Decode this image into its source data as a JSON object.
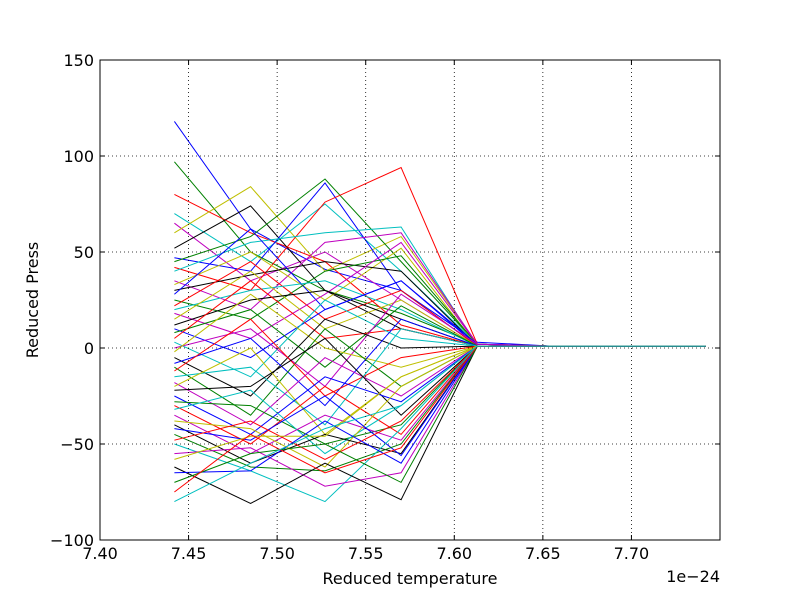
{
  "chart_data": {
    "type": "line",
    "title": "",
    "xlabel": "Reduced temperature",
    "ylabel": "Reduced Press",
    "x_offset_text": "1e−24",
    "xlim": [
      7.4,
      7.75
    ],
    "ylim": [
      -100,
      150
    ],
    "x_ticks": [
      7.4,
      7.45,
      7.5,
      7.55,
      7.6,
      7.65,
      7.7
    ],
    "x_tick_labels": [
      "7.40",
      "7.45",
      "7.50",
      "7.55",
      "7.60",
      "7.65",
      "7.70"
    ],
    "y_ticks": [
      -100,
      -50,
      0,
      50,
      100,
      150
    ],
    "y_tick_labels": [
      "−100",
      "−50",
      "0",
      "50",
      "100",
      "150"
    ],
    "grid": true,
    "grid_style": "dotted",
    "x": [
      7.442,
      7.485,
      7.527,
      7.57,
      7.613,
      7.655,
      7.742
    ],
    "colors": [
      "#0000ff",
      "#008000",
      "#ff0000",
      "#00bfbf",
      "#bf00bf",
      "#bfbf00",
      "#000000"
    ],
    "series": [
      {
        "values": [
          118,
          62,
          41,
          30,
          3,
          1,
          1
        ]
      },
      {
        "values": [
          97,
          50,
          30,
          18,
          2,
          1,
          1
        ]
      },
      {
        "values": [
          80,
          60,
          45,
          12,
          1,
          1,
          1
        ]
      },
      {
        "values": [
          70,
          45,
          75,
          40,
          2,
          1,
          1
        ]
      },
      {
        "values": [
          65,
          35,
          50,
          25,
          1,
          1,
          1
        ]
      },
      {
        "values": [
          60,
          84,
          40,
          58,
          2,
          1,
          1
        ]
      },
      {
        "values": [
          52,
          74,
          30,
          10,
          1,
          1,
          1
        ]
      },
      {
        "values": [
          47,
          40,
          86,
          30,
          1,
          1,
          1
        ]
      },
      {
        "values": [
          45,
          58,
          88,
          45,
          2,
          1,
          1
        ]
      },
      {
        "values": [
          42,
          30,
          76,
          94,
          2,
          1,
          1
        ]
      },
      {
        "values": [
          40,
          55,
          60,
          63,
          1,
          1,
          1
        ]
      },
      {
        "values": [
          35,
          20,
          55,
          60,
          2,
          1,
          1
        ]
      },
      {
        "values": [
          33,
          50,
          25,
          52,
          1,
          1,
          1
        ]
      },
      {
        "values": [
          30,
          38,
          45,
          40,
          1,
          1,
          1
        ]
      },
      {
        "values": [
          28,
          62,
          20,
          35,
          1,
          1,
          1
        ]
      },
      {
        "values": [
          25,
          15,
          40,
          48,
          2,
          1,
          1
        ]
      },
      {
        "values": [
          22,
          45,
          15,
          30,
          1,
          1,
          1
        ]
      },
      {
        "values": [
          20,
          30,
          35,
          20,
          1,
          1,
          1
        ]
      },
      {
        "values": [
          18,
          5,
          28,
          55,
          2,
          1,
          1
        ]
      },
      {
        "values": [
          15,
          40,
          10,
          25,
          1,
          1,
          1
        ]
      },
      {
        "values": [
          12,
          25,
          30,
          15,
          1,
          1,
          1
        ]
      },
      {
        "values": [
          10,
          -5,
          20,
          35,
          2,
          1,
          1
        ]
      },
      {
        "values": [
          8,
          20,
          -10,
          22,
          1,
          1,
          1
        ]
      },
      {
        "values": [
          5,
          35,
          5,
          10,
          1,
          1,
          1
        ]
      },
      {
        "values": [
          3,
          -15,
          25,
          5,
          1,
          1,
          1
        ]
      },
      {
        "values": [
          0,
          10,
          -20,
          28,
          2,
          1,
          1
        ]
      },
      {
        "values": [
          -2,
          28,
          0,
          -10,
          1,
          1,
          1
        ]
      },
      {
        "values": [
          -5,
          -25,
          15,
          0,
          1,
          1,
          1
        ]
      },
      {
        "values": [
          -8,
          5,
          -30,
          15,
          1,
          1,
          1
        ]
      },
      {
        "values": [
          -10,
          -35,
          10,
          -20,
          1,
          1,
          1
        ]
      },
      {
        "values": [
          -12,
          15,
          -25,
          -5,
          1,
          1,
          1
        ]
      },
      {
        "values": [
          -15,
          -10,
          -40,
          10,
          1,
          1,
          1
        ]
      },
      {
        "values": [
          -18,
          -40,
          -5,
          -25,
          1,
          1,
          1
        ]
      },
      {
        "values": [
          -20,
          0,
          -45,
          -15,
          1,
          1,
          1
        ]
      },
      {
        "values": [
          -22,
          -20,
          5,
          -35,
          1,
          1,
          1
        ]
      },
      {
        "values": [
          -25,
          -45,
          -15,
          -28,
          1,
          1,
          1
        ]
      },
      {
        "values": [
          -28,
          -30,
          -50,
          -40,
          1,
          1,
          1
        ]
      },
      {
        "values": [
          -30,
          -50,
          -20,
          -45,
          1,
          1,
          1
        ]
      },
      {
        "values": [
          -32,
          -22,
          -55,
          -30,
          1,
          1,
          1
        ]
      },
      {
        "values": [
          -35,
          -55,
          -35,
          -48,
          1,
          1,
          1
        ]
      },
      {
        "values": [
          -38,
          -42,
          -62,
          -20,
          1,
          1,
          1
        ]
      },
      {
        "values": [
          -40,
          -60,
          -45,
          -55,
          1,
          1,
          1
        ]
      },
      {
        "values": [
          -42,
          -48,
          -25,
          -56,
          1,
          1,
          1
        ]
      },
      {
        "values": [
          -45,
          -62,
          -64,
          -50,
          1,
          1,
          1
        ]
      },
      {
        "values": [
          -48,
          -38,
          -58,
          -38,
          1,
          1,
          1
        ]
      },
      {
        "values": [
          -50,
          -64,
          -80,
          -42,
          1,
          1,
          1
        ]
      },
      {
        "values": [
          -55,
          -52,
          -72,
          -65,
          1,
          1,
          1
        ]
      },
      {
        "values": [
          -58,
          -46,
          -46,
          -15,
          1,
          1,
          1
        ]
      },
      {
        "values": [
          -62,
          -81,
          -60,
          -79,
          1,
          1,
          1
        ]
      },
      {
        "values": [
          -65,
          -64,
          -38,
          -60,
          1,
          1,
          1
        ]
      },
      {
        "values": [
          -70,
          -55,
          -50,
          -70,
          1,
          1,
          1
        ]
      },
      {
        "values": [
          -75,
          -45,
          -65,
          -52,
          1,
          1,
          1
        ]
      },
      {
        "values": [
          -80,
          -60,
          -42,
          -30,
          1,
          1,
          1
        ]
      }
    ]
  }
}
